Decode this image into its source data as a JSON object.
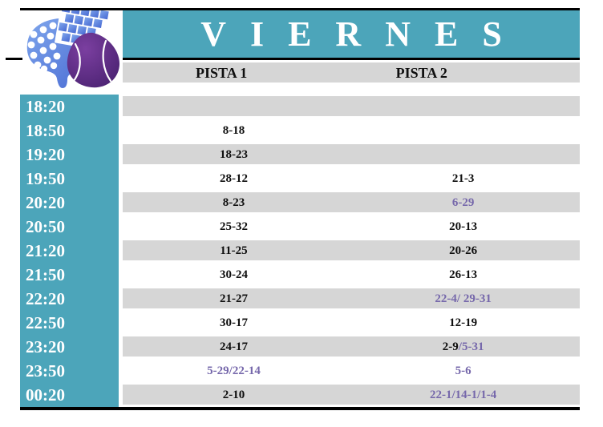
{
  "header": {
    "title": "VIERNES"
  },
  "columns": [
    {
      "label": "PISTA 1"
    },
    {
      "label": "PISTA 2"
    }
  ],
  "logo": {
    "icon": "padel-racket-and-ball-logo"
  },
  "colors": {
    "teal": "#4CA5BA",
    "row_gray": "#D6D6D6",
    "purple": "#7668AB",
    "border_black": "#000000",
    "racket_blue_light": "#7FA6EC",
    "racket_blue_dark": "#4668D2",
    "ball_purple_light": "#7B3FA0",
    "ball_purple_dark": "#47206E"
  },
  "rows": [
    {
      "time": "18:20",
      "pista1": [],
      "pista2": []
    },
    {
      "time": "18:50",
      "pista1": [
        {
          "text": "8-18",
          "purple": false
        }
      ],
      "pista2": []
    },
    {
      "time": "19:20",
      "pista1": [
        {
          "text": "18-23",
          "purple": false
        }
      ],
      "pista2": []
    },
    {
      "time": "19:50",
      "pista1": [
        {
          "text": "28-12",
          "purple": false
        }
      ],
      "pista2": [
        {
          "text": "21-3",
          "purple": false
        }
      ]
    },
    {
      "time": "20:20",
      "pista1": [
        {
          "text": "8-23",
          "purple": false
        }
      ],
      "pista2": [
        {
          "text": "6-29",
          "purple": true
        }
      ]
    },
    {
      "time": "20:50",
      "pista1": [
        {
          "text": "25-32",
          "purple": false
        }
      ],
      "pista2": [
        {
          "text": "20-13",
          "purple": false
        }
      ]
    },
    {
      "time": "21:20",
      "pista1": [
        {
          "text": "11-25",
          "purple": false
        }
      ],
      "pista2": [
        {
          "text": "20-26",
          "purple": false
        }
      ]
    },
    {
      "time": "21:50",
      "pista1": [
        {
          "text": "30-24",
          "purple": false
        }
      ],
      "pista2": [
        {
          "text": "26-13",
          "purple": false
        }
      ]
    },
    {
      "time": "22:20",
      "pista1": [
        {
          "text": "21-27",
          "purple": false
        }
      ],
      "pista2": [
        {
          "text": "22-4/ 29-31",
          "purple": true
        }
      ]
    },
    {
      "time": "22:50",
      "pista1": [
        {
          "text": "30-17",
          "purple": false
        }
      ],
      "pista2": [
        {
          "text": "12-19",
          "purple": false
        }
      ]
    },
    {
      "time": "23:20",
      "pista1": [
        {
          "text": "24-17",
          "purple": false
        }
      ],
      "pista2": [
        {
          "text": "2-9",
          "purple": false
        },
        {
          "text": "/5-31",
          "purple": true
        }
      ]
    },
    {
      "time": "23:50",
      "pista1": [
        {
          "text": "5-29/22-14",
          "purple": true
        }
      ],
      "pista2": [
        {
          "text": "5-6",
          "purple": true
        }
      ]
    },
    {
      "time": "00:20",
      "pista1": [
        {
          "text": "2-10",
          "purple": false
        }
      ],
      "pista2": [
        {
          "text": "22-1/14-1/1-4",
          "purple": true
        }
      ]
    }
  ]
}
